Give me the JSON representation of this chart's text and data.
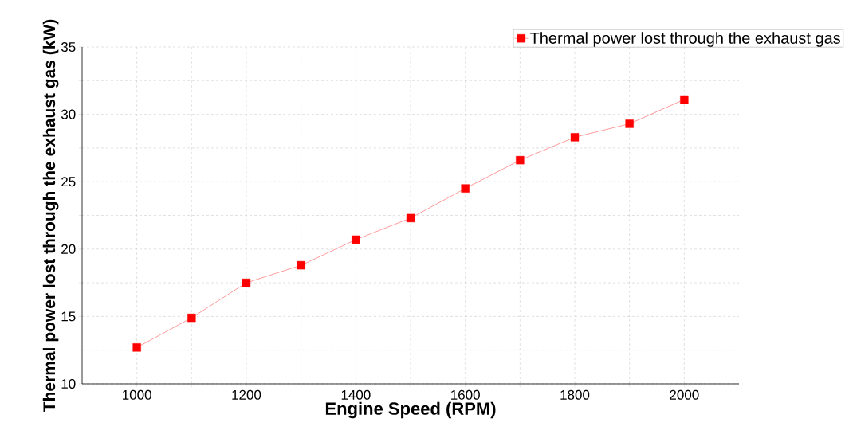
{
  "chart_data": {
    "type": "line",
    "xlabel": "Engine Speed (RPM)",
    "ylabel": "Thermal power lost through the exhaust gas (kW)",
    "x": [
      1000,
      1100,
      1200,
      1300,
      1400,
      1500,
      1600,
      1700,
      1800,
      1900,
      2000
    ],
    "series": [
      {
        "name": "Thermal power lost through the exhaust gas",
        "color": "#ff0000",
        "values": [
          12.7,
          14.9,
          17.5,
          18.8,
          20.7,
          22.3,
          24.5,
          26.6,
          28.3,
          29.3,
          31.1
        ]
      }
    ],
    "xlim": [
      900,
      2100
    ],
    "xticks": [
      1000,
      {
        "value": 1100,
        "label": null
      },
      1200,
      {
        "value": 1300,
        "label": null
      },
      1400,
      {
        "value": 1500,
        "label": null
      },
      1600,
      {
        "value": 1700,
        "label": null
      },
      1800,
      {
        "value": 1900,
        "label": null
      },
      2000
    ],
    "ylim": [
      10,
      35
    ],
    "yticks": [
      10,
      {
        "value": 12.5,
        "label": null
      },
      15,
      {
        "value": 17.5,
        "label": null
      },
      20,
      {
        "value": 22.5,
        "label": null
      },
      25,
      {
        "value": 27.5,
        "label": null
      },
      30,
      {
        "value": 32.5,
        "label": null
      },
      35
    ],
    "grid": true,
    "legend": "top right",
    "marker": "square",
    "line_style": "solid"
  }
}
